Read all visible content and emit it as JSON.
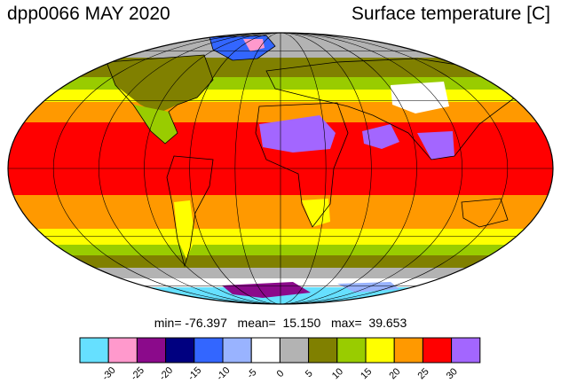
{
  "header": {
    "left_title": "dpp0066 MAY 2020",
    "right_title": "Surface temperature [C]"
  },
  "stats": {
    "text": "min= -76.397   mean=  15.150   max=  39.653",
    "min": -76.397,
    "mean": 15.15,
    "max": 39.653
  },
  "map": {
    "projection": "mollweide",
    "graticule_spacing_deg": 30,
    "coastlines": true
  },
  "legend": {
    "tick_labels": [
      "-30",
      "-25",
      "-20",
      "-15",
      "-10",
      "-5",
      "0",
      "5",
      "10",
      "15",
      "20",
      "25",
      "30"
    ],
    "colors": [
      "#66e0ff",
      "#ff99cc",
      "#8b0a8b",
      "#000080",
      "#3366ff",
      "#99b3ff",
      "#ffffff",
      "#b3b3b3",
      "#808000",
      "#99cc00",
      "#ffff00",
      "#ff9900",
      "#ff0000",
      "#a366ff"
    ]
  }
}
